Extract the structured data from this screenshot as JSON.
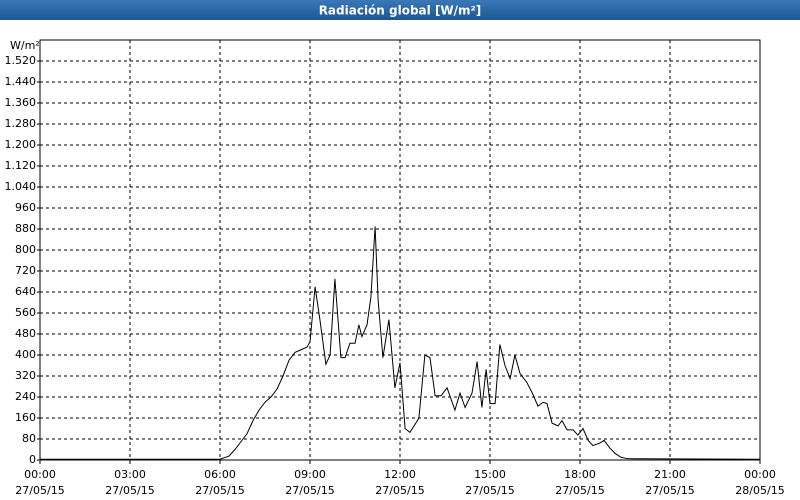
{
  "chart_data": {
    "type": "line",
    "title": "Radiación global [W/m²]",
    "y_label": "W/m²",
    "color": "#000000",
    "grid": true,
    "xlim": [
      0,
      24
    ],
    "ylim": [
      0,
      1600
    ],
    "xticks": [
      {
        "value": 0,
        "label": "00:00\n27/05/15"
      },
      {
        "value": 3,
        "label": "03:00\n27/05/15"
      },
      {
        "value": 6,
        "label": "06:00\n27/05/15"
      },
      {
        "value": 9,
        "label": "09:00\n27/05/15"
      },
      {
        "value": 12,
        "label": "12:00\n27/05/15"
      },
      {
        "value": 15,
        "label": "15:00\n27/05/15"
      },
      {
        "value": 18,
        "label": "18:00\n27/05/15"
      },
      {
        "value": 21,
        "label": "21:00\n27/05/15"
      },
      {
        "value": 24,
        "label": "00:00\n28/05/15"
      }
    ],
    "yticks": [
      0,
      80,
      160,
      240,
      320,
      400,
      480,
      560,
      640,
      720,
      800,
      880,
      960,
      {
        "value": 1040,
        "label": "1.040"
      },
      {
        "value": 1120,
        "label": "1.120"
      },
      {
        "value": 1200,
        "label": "1.200"
      },
      {
        "value": 1280,
        "label": "1.280"
      },
      {
        "value": 1360,
        "label": "1.360"
      },
      {
        "value": 1440,
        "label": "1.440"
      },
      {
        "value": 1520,
        "label": "1.520"
      }
    ],
    "x": [
      0,
      6,
      6.3,
      6.5,
      6.7,
      6.9,
      7.1,
      7.3,
      7.5,
      7.7,
      7.9,
      8.1,
      8.3,
      8.5,
      8.7,
      8.9,
      9.0,
      9.17,
      9.33,
      9.53,
      9.67,
      9.83,
      10.03,
      10.17,
      10.33,
      10.5,
      10.63,
      10.73,
      10.9,
      11.03,
      11.17,
      11.27,
      11.43,
      11.63,
      11.83,
      12.0,
      12.17,
      12.33,
      12.47,
      12.63,
      12.83,
      13.0,
      13.17,
      13.37,
      13.57,
      13.83,
      14.0,
      14.17,
      14.4,
      14.57,
      14.73,
      14.87,
      15.0,
      15.17,
      15.33,
      15.5,
      15.67,
      15.83,
      16.0,
      16.23,
      16.43,
      16.6,
      16.77,
      16.9,
      17.07,
      17.27,
      17.4,
      17.57,
      17.77,
      17.93,
      18.1,
      18.27,
      18.43,
      18.67,
      18.8,
      19.0,
      19.17,
      19.37,
      19.6,
      24
    ],
    "series": [
      {
        "values": [
          3,
          3,
          15,
          40,
          70,
          100,
          150,
          190,
          220,
          240,
          270,
          320,
          380,
          410,
          420,
          430,
          450,
          660,
          535,
          365,
          400,
          690,
          390,
          390,
          445,
          445,
          515,
          470,
          515,
          620,
          890,
          610,
          390,
          535,
          275,
          370,
          120,
          105,
          130,
          160,
          400,
          390,
          245,
          245,
          275,
          190,
          255,
          200,
          255,
          375,
          200,
          345,
          215,
          215,
          440,
          360,
          310,
          400,
          330,
          295,
          250,
          205,
          220,
          215,
          140,
          130,
          150,
          115,
          115,
          95,
          120,
          75,
          55,
          65,
          75,
          45,
          25,
          10,
          5,
          3
        ]
      }
    ]
  }
}
